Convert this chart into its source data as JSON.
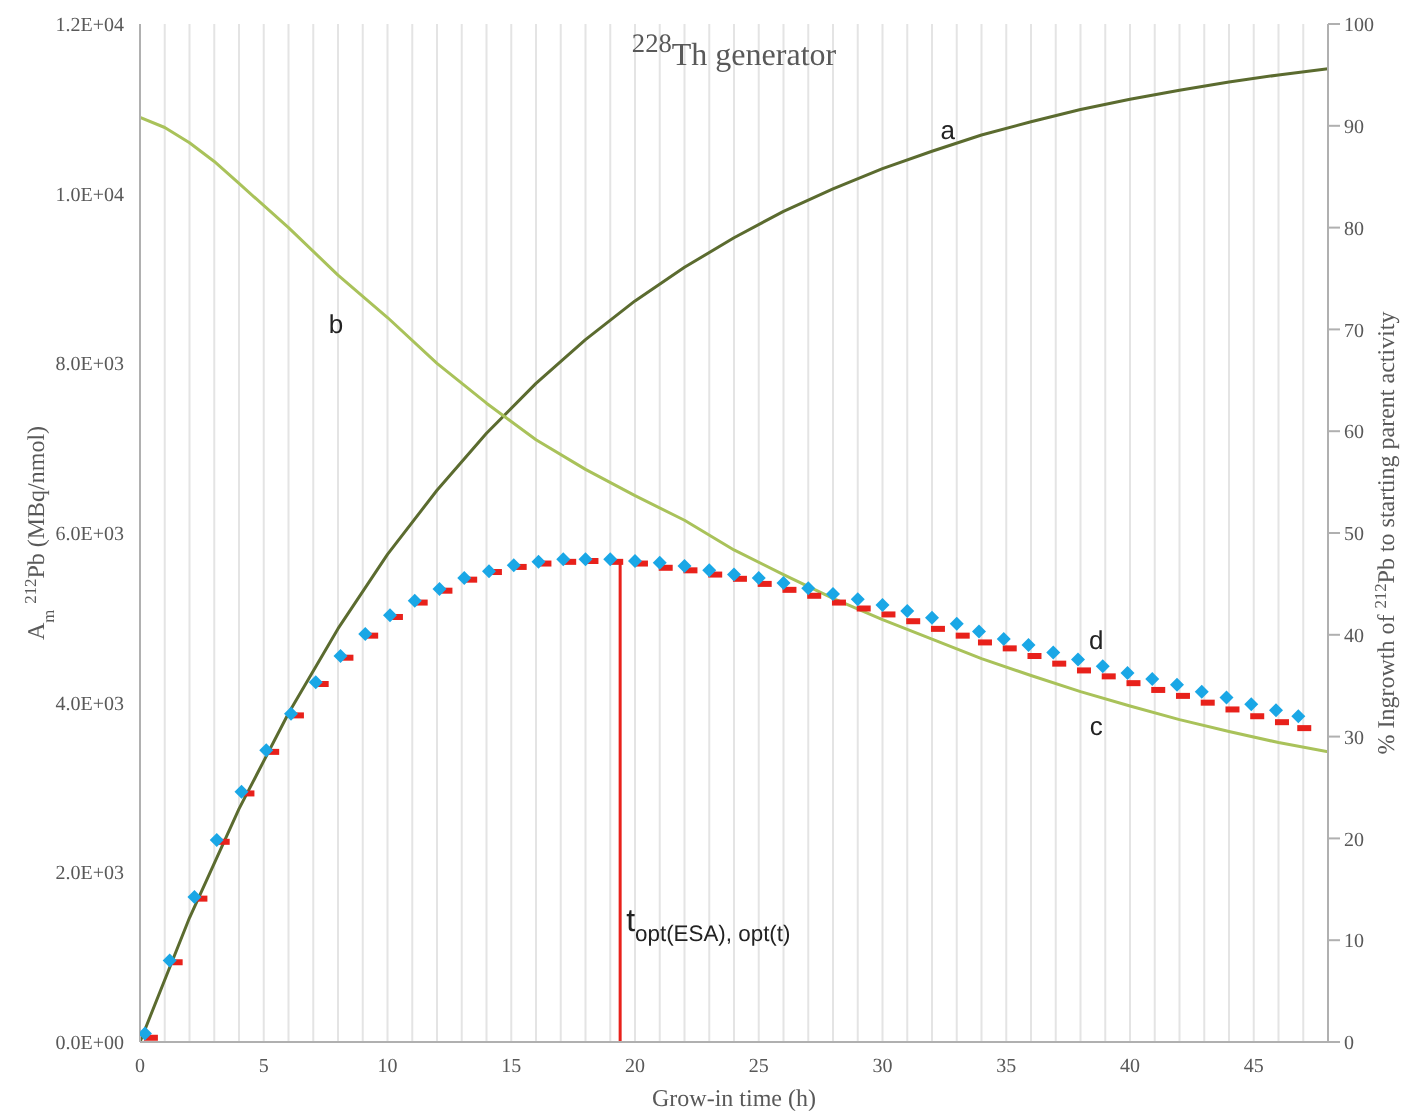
{
  "chart_data": {
    "type": "line",
    "title": "$^{228}$Th generator",
    "xlabel": "Grow-in time (h)",
    "ylabel": "A$_{m}$ $^{212}$Pb (MBq/nmol)",
    "y2label": "% Ingrowth of $^{212}$Pb to starting parent activity",
    "xlim": [
      0,
      48
    ],
    "xticks": [
      0,
      {
        "value": 1,
        "label": null
      },
      {
        "value": 2,
        "label": null
      },
      {
        "value": 3,
        "label": null
      },
      {
        "value": 4,
        "label": null
      },
      5,
      {
        "value": 6,
        "label": null
      },
      {
        "value": 7,
        "label": null
      },
      {
        "value": 8,
        "label": null
      },
      {
        "value": 9,
        "label": null
      },
      10,
      {
        "value": 11,
        "label": null
      },
      {
        "value": 12,
        "label": null
      },
      {
        "value": 13,
        "label": null
      },
      {
        "value": 14,
        "label": null
      },
      15,
      {
        "value": 16,
        "label": null
      },
      {
        "value": 17,
        "label": null
      },
      {
        "value": 18,
        "label": null
      },
      {
        "value": 19,
        "label": null
      },
      20,
      {
        "value": 21,
        "label": null
      },
      {
        "value": 22,
        "label": null
      },
      {
        "value": 23,
        "label": null
      },
      {
        "value": 24,
        "label": null
      },
      25,
      {
        "value": 26,
        "label": null
      },
      {
        "value": 27,
        "label": null
      },
      {
        "value": 28,
        "label": null
      },
      {
        "value": 29,
        "label": null
      },
      30,
      {
        "value": 31,
        "label": null
      },
      {
        "value": 32,
        "label": null
      },
      {
        "value": 33,
        "label": null
      },
      {
        "value": 34,
        "label": null
      },
      35,
      {
        "value": 36,
        "label": null
      },
      {
        "value": 37,
        "label": null
      },
      {
        "value": 38,
        "label": null
      },
      {
        "value": 39,
        "label": null
      },
      40,
      {
        "value": 41,
        "label": null
      },
      {
        "value": 42,
        "label": null
      },
      {
        "value": 43,
        "label": null
      },
      {
        "value": 44,
        "label": null
      },
      45,
      {
        "value": 46,
        "label": null
      },
      {
        "value": 47,
        "label": null
      }
    ],
    "ylim": [
      0,
      12000
    ],
    "yticks": [
      {
        "value": 0,
        "label": "0.0E+00"
      },
      {
        "value": 2000,
        "label": "2.0E+03"
      },
      {
        "value": 4000,
        "label": "4.0E+03"
      },
      {
        "value": 6000,
        "label": "6.0E+03"
      },
      {
        "value": 8000,
        "label": "8.0E+03"
      },
      {
        "value": 10000,
        "label": "1.0E+04"
      },
      {
        "value": 12000,
        "label": "1.2E+04"
      }
    ],
    "y2lim": [
      0,
      100
    ],
    "y2ticks": [
      0,
      10,
      20,
      30,
      40,
      50,
      60,
      70,
      80,
      90,
      100
    ],
    "grid": "x",
    "series": [
      {
        "color": "#5b6b2f",
        "axis": "y2",
        "marker": "none",
        "x": [
          0,
          2,
          4,
          6,
          8,
          10,
          12,
          14,
          16,
          18,
          20,
          22,
          24,
          26,
          28,
          30,
          32,
          34,
          36,
          38,
          40,
          42,
          44,
          46,
          48
        ],
        "values": [
          0,
          12.2,
          22.9,
          32.3,
          40.6,
          47.9,
          54.2,
          59.8,
          64.7,
          69.0,
          72.8,
          76.1,
          79.0,
          81.6,
          83.8,
          85.8,
          87.5,
          89.1,
          90.4,
          91.6,
          92.6,
          93.5,
          94.3,
          95.0,
          95.6
        ]
      },
      {
        "color": "#a9c25a",
        "marker": "none",
        "x": [
          0,
          1,
          2,
          3,
          4,
          6,
          8,
          10,
          12,
          14,
          16,
          18,
          20,
          22,
          24,
          26,
          28,
          30,
          32,
          34,
          36,
          38,
          40,
          42,
          44,
          46,
          48
        ],
        "values": [
          10900,
          10780,
          10600,
          10380,
          10120,
          9600,
          9040,
          8540,
          8000,
          7530,
          7100,
          6750,
          6440,
          6150,
          5800,
          5510,
          5230,
          4980,
          4750,
          4520,
          4320,
          4130,
          3960,
          3800,
          3660,
          3530,
          3420
        ]
      },
      {
        "type": "scatter",
        "color": "#e8211b",
        "marker": "square",
        "x": [
          0.4,
          1.4,
          2.4,
          3.3,
          4.3,
          5.3,
          6.3,
          7.3,
          8.3,
          9.3,
          10.3,
          11.3,
          12.3,
          13.3,
          14.3,
          15.3,
          16.3,
          17.3,
          18.2,
          19.2,
          20.2,
          21.2,
          22.2,
          23.2,
          24.2,
          25.2,
          26.2,
          27.2,
          28.2,
          29.2,
          30.2,
          31.2,
          32.2,
          33.2,
          34.1,
          35.1,
          36.1,
          37.1,
          38.1,
          39.1,
          40.1,
          41.1,
          42.1,
          43.1,
          44.1,
          45.1,
          46.1,
          47.0
        ],
        "values": [
          50,
          940,
          1690,
          2360,
          2930,
          3420,
          3850,
          4220,
          4530,
          4790,
          5010,
          5180,
          5320,
          5450,
          5540,
          5600,
          5640,
          5660,
          5670,
          5660,
          5640,
          5590,
          5560,
          5510,
          5460,
          5400,
          5330,
          5260,
          5180,
          5110,
          5040,
          4960,
          4870,
          4790,
          4710,
          4640,
          4550,
          4460,
          4380,
          4310,
          4230,
          4150,
          4080,
          4000,
          3920,
          3840,
          3770,
          3700
        ]
      },
      {
        "type": "scatter",
        "color": "#1aa7e6",
        "marker": "diamond",
        "x": [
          0.2,
          1.2,
          2.2,
          3.1,
          4.1,
          5.1,
          6.1,
          7.1,
          8.1,
          9.1,
          10.1,
          11.1,
          12.1,
          13.1,
          14.1,
          15.1,
          16.1,
          17.1,
          18.0,
          19.0,
          20.0,
          21.0,
          22.0,
          23.0,
          24.0,
          25.0,
          26.0,
          27.0,
          28.0,
          29.0,
          30.0,
          31.0,
          32.0,
          33.0,
          33.9,
          34.9,
          35.9,
          36.9,
          37.9,
          38.9,
          39.9,
          40.9,
          41.9,
          42.9,
          43.9,
          44.9,
          45.9,
          46.8
        ],
        "values": [
          100,
          960,
          1710,
          2380,
          2950,
          3440,
          3870,
          4240,
          4550,
          4810,
          5030,
          5200,
          5340,
          5470,
          5550,
          5620,
          5660,
          5690,
          5690,
          5690,
          5670,
          5650,
          5610,
          5560,
          5510,
          5470,
          5410,
          5350,
          5280,
          5220,
          5150,
          5080,
          5000,
          4930,
          4840,
          4750,
          4680,
          4590,
          4510,
          4430,
          4350,
          4280,
          4210,
          4130,
          4060,
          3980,
          3910,
          3840
        ]
      },
      {
        "color": "#e8211b",
        "marker": "none",
        "x": [
          19.4,
          19.4
        ],
        "values": [
          0,
          5690
        ]
      }
    ],
    "annotations": [
      "a",
      "b",
      "c",
      "d",
      {
        "text": "t$_{opt(ESA), opt(t)}$",
        "x": 19.4,
        "y": 1400
      }
    ]
  }
}
